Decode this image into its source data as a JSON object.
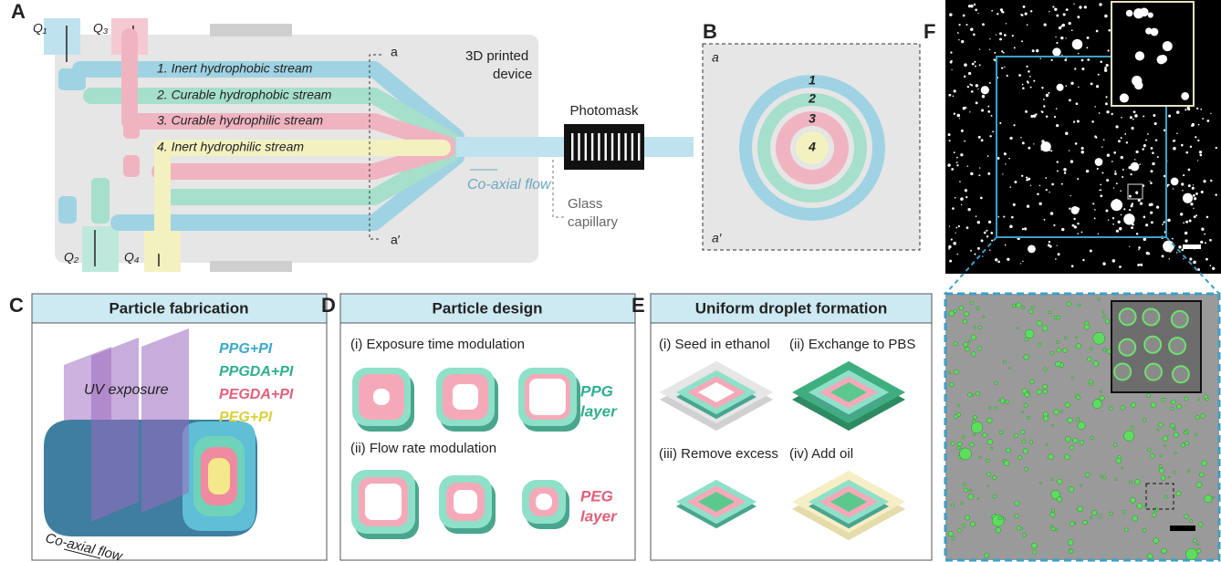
{
  "panels": {
    "a": {
      "label": "A",
      "inlets": [
        "Q₁",
        "Q₂",
        "Q₃",
        "Q₄"
      ],
      "streams": [
        "1. Inert hydrophobic stream",
        "2. Curable hydrophobic stream",
        "3. Curable hydrophilic stream",
        "4. Inert hydrophilic stream"
      ],
      "section_top": "a",
      "section_bottom": "a′",
      "device": [
        "3D printed",
        "device"
      ],
      "photomask": "Photomask",
      "flow": "Co-axial flow",
      "capillary": [
        "Glass",
        "capillary"
      ]
    },
    "b": {
      "label": "B",
      "section_top": "a",
      "section_bottom": "a′",
      "rings": [
        "1",
        "2",
        "3",
        "4"
      ]
    },
    "c": {
      "label": "C",
      "title": "Particle fabrication",
      "materials": [
        "PPG+PI",
        "PPGDA+PI",
        "PEGDA+PI",
        "PEG+PI"
      ],
      "exposure": "UV exposure",
      "flow": "Co-axial flow"
    },
    "d": {
      "label": "D",
      "title": "Particle design",
      "steps": [
        "(i) Exposure time modulation",
        "(ii) Flow rate modulation"
      ],
      "layers": [
        [
          "PPG",
          "layer"
        ],
        [
          "PEG",
          "layer"
        ]
      ]
    },
    "e": {
      "label": "E",
      "title": "Uniform droplet formation",
      "steps": [
        "(i) Seed in ethanol",
        "(ii) Exchange to PBS",
        "(iii) Remove excess",
        "(iv) Add oil"
      ]
    },
    "f": {
      "label": "F"
    }
  }
}
